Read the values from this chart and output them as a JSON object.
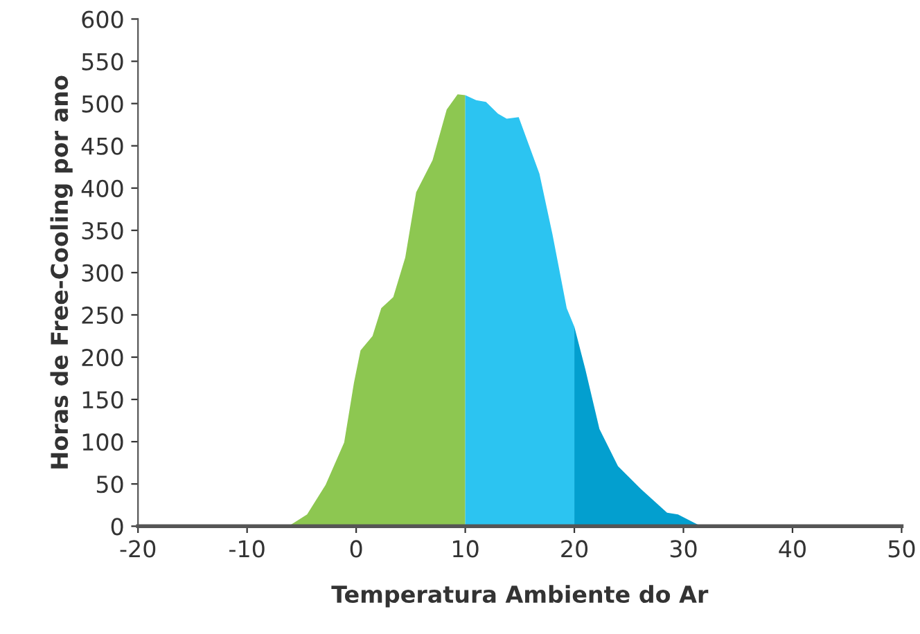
{
  "chart_data": {
    "type": "area",
    "xlabel": "Temperatura Ambiente do Ar",
    "ylabel": "Horas de Free-Cooling por ano",
    "xlim": [
      -20,
      50
    ],
    "ylim": [
      0,
      600
    ],
    "xticks": [
      -20,
      -10,
      0,
      10,
      20,
      30,
      40,
      50
    ],
    "yticks": [
      0,
      50,
      100,
      150,
      200,
      250,
      300,
      350,
      400,
      450,
      500,
      550,
      600
    ],
    "grid": false,
    "series": [
      {
        "color": "#8dc751",
        "x": [
          -6.2,
          -4.5,
          -2.8,
          -1.1,
          -0.2,
          0.4,
          1.5,
          2.3,
          3.4,
          4.5,
          5.5,
          7.0,
          8.3,
          9.3,
          10.0
        ],
        "values": [
          0,
          14,
          49,
          99,
          170,
          208,
          225,
          258,
          271,
          318,
          395,
          433,
          493,
          511,
          510
        ]
      },
      {
        "color": "#2cc4f1",
        "x": [
          10.0,
          11.0,
          11.9,
          13.0,
          13.8,
          14.9,
          16.8,
          18.0,
          19.3,
          20.0
        ],
        "values": [
          510,
          504,
          502,
          488,
          482,
          484,
          417,
          345,
          258,
          236
        ]
      },
      {
        "color": "#039fcf",
        "x": [
          20.0,
          21.0,
          22.3,
          24.0,
          26.1,
          28.5,
          29.5,
          31.6
        ],
        "values": [
          236,
          186,
          115,
          71,
          44,
          16,
          14,
          0
        ]
      }
    ]
  }
}
